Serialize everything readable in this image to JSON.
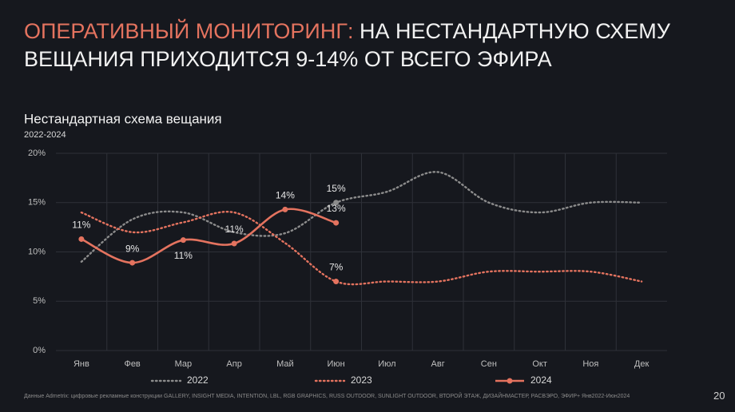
{
  "slide": {
    "title_highlight": "ОПЕРАТИВНЫЙ МОНИТОРИНГ:",
    "title": "НА НЕСТАНДАРТНУЮ СХЕМУ ВЕЩАНИЯ ПРИХОДИТСЯ 9-14% ОТ ВСЕГО ЭФИРА",
    "footnote": "Данные Admetrix: цифровые рекламные конструкции GALLERY, INSIGHT MEDIA, INTENTION, LBL, RGB GRAPHICS, RUSS OUTDOOR, SUNLIGHT OUTDOOR, ВТОРОЙ ЭТАЖ, ДИЗАЙНМАСТЕР, РАСВЭРО, ЭФИР+ Янв2022-Июн2024",
    "page_number": "20"
  },
  "chart_data": {
    "type": "line",
    "title": "Нестандартная схема вещания",
    "subtitle": "2022-2024",
    "categories": [
      "Янв",
      "Фев",
      "Мар",
      "Апр",
      "Май",
      "Июн",
      "Июл",
      "Авг",
      "Сен",
      "Окт",
      "Ноя",
      "Дек"
    ],
    "series": [
      {
        "name": "2022",
        "color": "#8c8c8c",
        "line_style": "dotted",
        "markers": false,
        "values": [
          9,
          13.3,
          14,
          12,
          11.9,
          15,
          16.1,
          18.1,
          15,
          14,
          15,
          15
        ],
        "value_labels": [
          null,
          null,
          null,
          null,
          null,
          "15%",
          null,
          null,
          null,
          null,
          null,
          null
        ]
      },
      {
        "name": "2023",
        "color": "#e4735f",
        "line_style": "dotted",
        "markers": false,
        "values": [
          14,
          12,
          13,
          14,
          10.9,
          7,
          7,
          7,
          8,
          8,
          8,
          7
        ],
        "value_labels": [
          null,
          null,
          null,
          null,
          null,
          "7%",
          null,
          null,
          null,
          null,
          null,
          null
        ]
      },
      {
        "name": "2024",
        "color": "#e4735f",
        "line_style": "solid",
        "markers": true,
        "values": [
          11.3,
          8.9,
          11.2,
          10.85,
          14.3,
          12.95,
          null,
          null,
          null,
          null,
          null,
          null
        ],
        "value_labels": [
          "11%",
          "9%",
          "11%",
          "11%",
          "14%",
          "13%",
          null,
          null,
          null,
          null,
          null,
          null
        ]
      }
    ],
    "ylim": [
      0,
      20
    ],
    "yticks": [
      {
        "value": 0,
        "label": "0%"
      },
      {
        "value": 5,
        "label": "5%"
      },
      {
        "value": 10,
        "label": "10%"
      },
      {
        "value": 15,
        "label": "15%"
      },
      {
        "value": 20,
        "label": "20%"
      }
    ],
    "grid": true,
    "legend": "bottom"
  }
}
